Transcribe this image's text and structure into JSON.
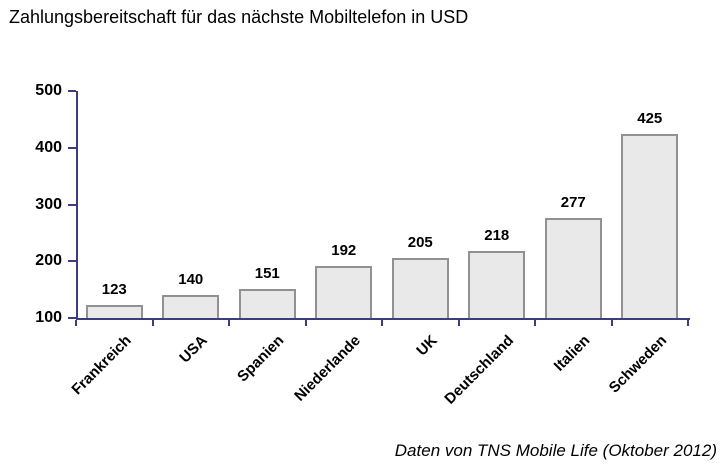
{
  "chart_data": {
    "type": "bar",
    "title": "Zahlungsbereitschaft für das nächste Mobiltelefon in USD",
    "categories": [
      "Frankreich",
      "USA",
      "Spanien",
      "Niederlande",
      "UK",
      "Deutschland",
      "Italien",
      "Schweden"
    ],
    "values": [
      123,
      140,
      151,
      192,
      205,
      218,
      277,
      425
    ],
    "ylim": [
      100,
      500
    ],
    "yticks": [
      100,
      200,
      300,
      400,
      500
    ],
    "xlabel": "",
    "ylabel": "",
    "grid": false,
    "legend": "none",
    "source_note": "Daten von TNS Mobile Life (Oktober 2012)",
    "colors": {
      "axis": "#3d3d7c",
      "bar_fill": "#e9e9e9",
      "bar_border": "#919191",
      "text": "#000000",
      "background": "#ffffff"
    }
  }
}
